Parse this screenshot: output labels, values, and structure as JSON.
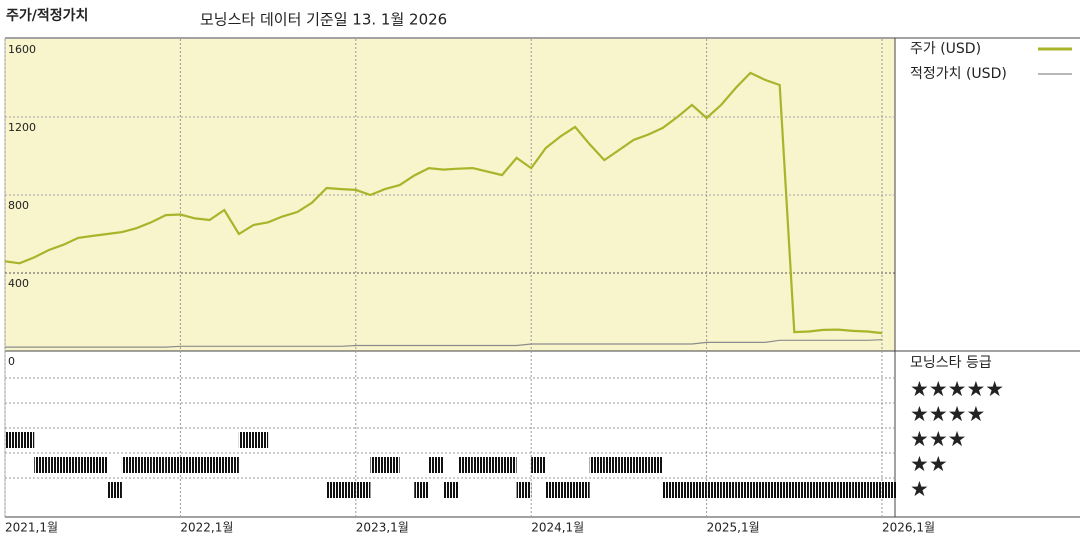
{
  "chart_data": {
    "type": "line",
    "title": "주가/적정가치",
    "subtitle": "모닝스타 데이터 기준일 13. 1월 2026",
    "x": [
      "2021-01",
      "2021-02",
      "2021-03",
      "2021-04",
      "2021-05",
      "2021-06",
      "2021-07",
      "2021-08",
      "2021-09",
      "2021-10",
      "2021-11",
      "2021-12",
      "2022-01",
      "2022-02",
      "2022-03",
      "2022-04",
      "2022-05",
      "2022-06",
      "2022-07",
      "2022-08",
      "2022-09",
      "2022-10",
      "2022-11",
      "2022-12",
      "2023-01",
      "2023-02",
      "2023-03",
      "2023-04",
      "2023-05",
      "2023-06",
      "2023-07",
      "2023-08",
      "2023-09",
      "2023-10",
      "2023-11",
      "2023-12",
      "2024-01",
      "2024-02",
      "2024-03",
      "2024-04",
      "2024-05",
      "2024-06",
      "2024-07",
      "2024-08",
      "2024-09",
      "2024-10",
      "2024-11",
      "2024-12",
      "2025-01",
      "2025-02",
      "2025-03",
      "2025-04",
      "2025-05",
      "2025-06",
      "2025-07",
      "2025-08",
      "2025-09",
      "2025-10",
      "2025-11",
      "2025-12",
      "2026-01"
    ],
    "xlim": [
      "2021-01",
      "2026-01"
    ],
    "xticks": [
      {
        "value": "2021-01",
        "label": "2021,1월"
      },
      {
        "value": "2022-01",
        "label": "2022,1월"
      },
      {
        "value": "2023-01",
        "label": "2023,1월"
      },
      {
        "value": "2024-01",
        "label": "2024,1월"
      },
      {
        "value": "2025-01",
        "label": "2025,1월"
      },
      {
        "value": "2026-01",
        "label": "2026,1월"
      }
    ],
    "ylim": [
      0,
      1600
    ],
    "yticks": [
      0,
      400,
      800,
      1200,
      1600
    ],
    "grid": true,
    "series": [
      {
        "name": "주가 (USD)",
        "color": "#a9b42a",
        "values": [
          460,
          450,
          480,
          518,
          545,
          580,
          590,
          600,
          610,
          630,
          660,
          697,
          700,
          680,
          672,
          723,
          600,
          646,
          660,
          690,
          713,
          760,
          836,
          830,
          826,
          800,
          830,
          851,
          900,
          938,
          930,
          935,
          938,
          920,
          902,
          990,
          938,
          1041,
          1100,
          1149,
          1060,
          979,
          1030,
          1082,
          1110,
          1144,
          1200,
          1262,
          1195,
          1262,
          1349,
          1426,
          1390,
          1364,
          97,
          100,
          108,
          110,
          103,
          100,
          92
        ]
      },
      {
        "name": "적정가치 (USD)",
        "color": "#8c8c8c",
        "values": [
          20,
          20,
          20,
          20,
          20,
          20,
          20,
          20,
          20,
          20,
          20,
          20,
          24,
          24,
          24,
          24,
          24,
          24,
          24,
          24,
          24,
          24,
          24,
          24,
          28,
          28,
          28,
          28,
          28,
          28,
          28,
          28,
          28,
          28,
          28,
          28,
          36,
          36,
          36,
          36,
          36,
          36,
          36,
          36,
          36,
          36,
          36,
          36,
          44,
          44,
          44,
          44,
          44,
          55,
          55,
          55,
          55,
          55,
          55,
          55,
          58
        ]
      }
    ],
    "star_rating": {
      "title": "모닝스타 등급",
      "labels": [
        "★★★★★",
        "★★★★",
        "★★★",
        "★★",
        "★"
      ],
      "levels": [
        5,
        4,
        3,
        2,
        1
      ],
      "values": [
        3,
        3,
        2,
        2,
        2,
        2,
        2,
        1,
        2,
        2,
        2,
        2,
        2,
        2,
        2,
        2,
        3,
        3,
        null,
        null,
        null,
        null,
        1,
        1,
        1,
        2,
        2,
        null,
        1,
        2,
        1,
        2,
        2,
        2,
        2,
        1,
        2,
        1,
        1,
        1,
        2,
        2,
        2,
        2,
        2,
        1,
        1,
        1,
        1,
        1,
        1,
        1,
        1,
        1,
        1,
        1,
        1,
        1,
        1,
        1,
        1
      ]
    }
  }
}
